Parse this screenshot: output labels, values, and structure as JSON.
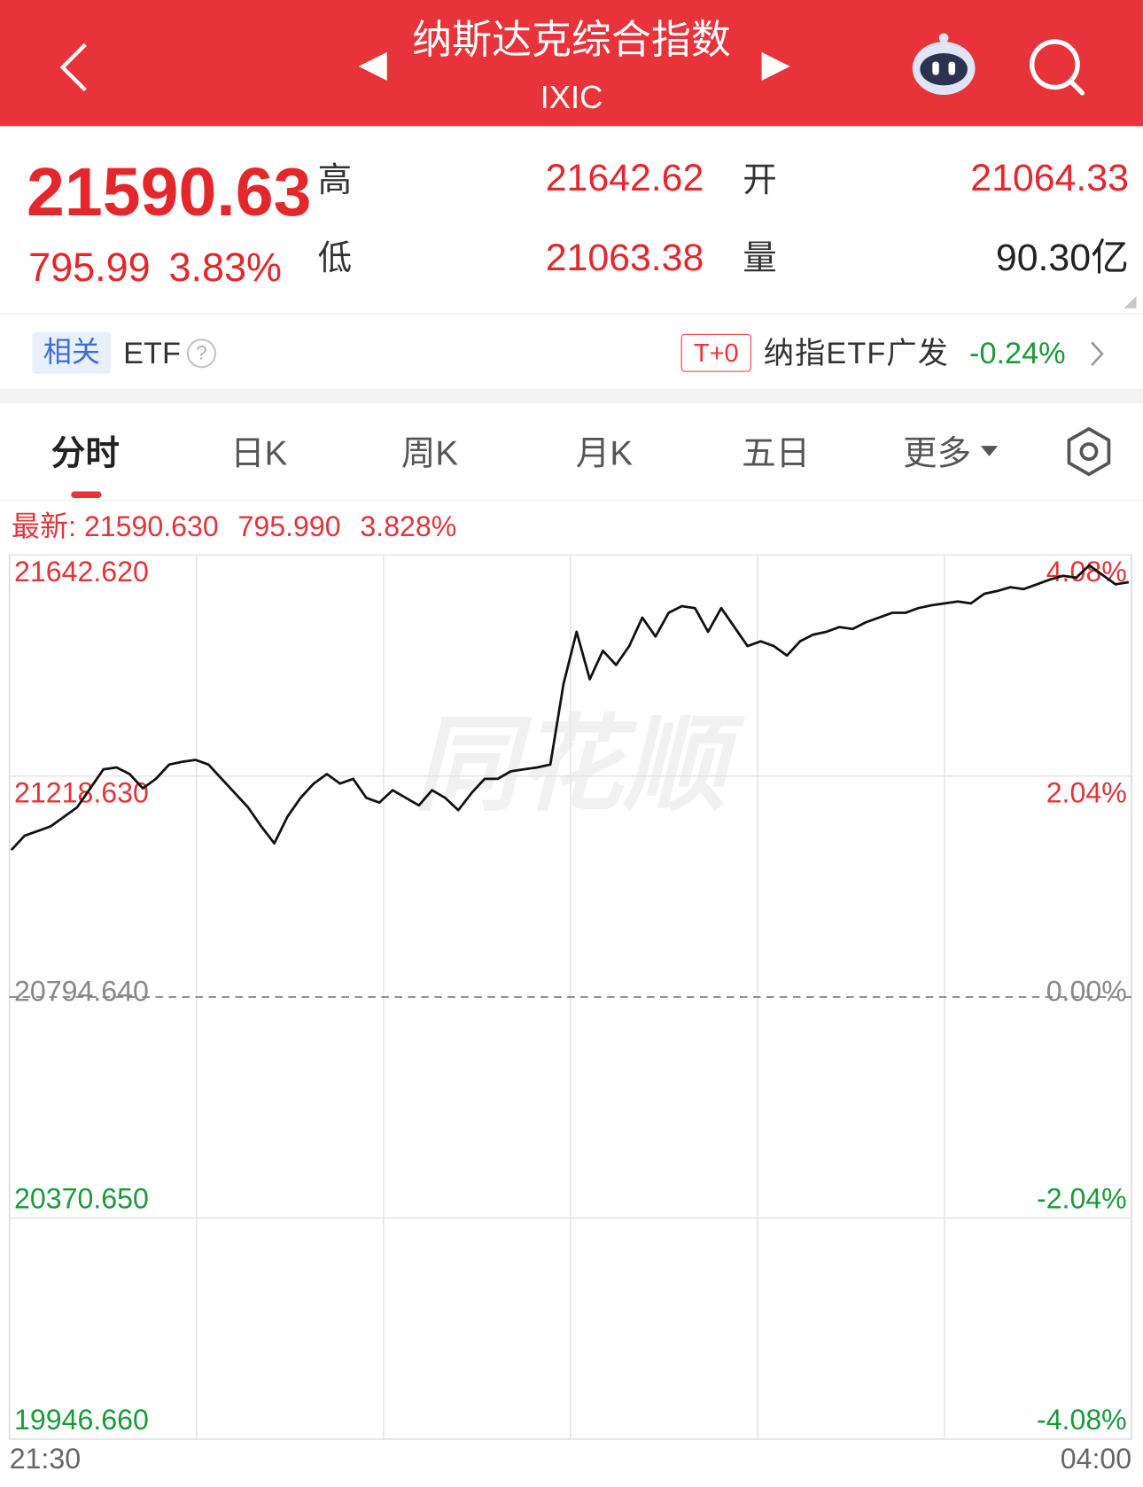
{
  "header": {
    "title": "纳斯达克综合指数",
    "subtitle": "IXIC"
  },
  "quote": {
    "price": "21590.63",
    "change": "795.99",
    "change_pct": "3.83%",
    "high_label": "高",
    "high": "21642.62",
    "low_label": "低",
    "low": "21063.38",
    "open_label": "开",
    "open": "21064.33",
    "volume_label": "量",
    "volume": "90.30亿"
  },
  "etf": {
    "tag": "相关",
    "label": "ETF",
    "help": "?",
    "badge": "T+0",
    "name": "纳指ETF广发",
    "change": "-0.24%"
  },
  "tabs": [
    "分时",
    "日K",
    "周K",
    "月K",
    "五日",
    "更多"
  ],
  "latest": {
    "label": "最新:",
    "price": "21590.630",
    "change": "795.990",
    "change_pct": "3.828%"
  },
  "watermark": "同花顺",
  "chart_data": {
    "type": "line",
    "color": "#111111",
    "up_color": "#e0353a",
    "down_color": "#1a9a3a",
    "flat_color": "#888888",
    "grid": true,
    "x_labels": [
      "21:30",
      "04:00"
    ],
    "ylim": [
      19946.66,
      21642.62
    ],
    "yticks": [
      {
        "value": 21642.62,
        "label": "21642.620"
      },
      {
        "value": 21218.63,
        "label": "21218.630"
      },
      {
        "value": 20794.64,
        "label": "20794.640"
      },
      {
        "value": 20370.65,
        "label": "20370.650"
      },
      {
        "value": 19946.66,
        "label": "19946.660"
      }
    ],
    "y2lim": [
      -4.08,
      4.08
    ],
    "y2ticks": [
      {
        "value": 4.08,
        "label": "4.08%"
      },
      {
        "value": 2.04,
        "label": "2.04%"
      },
      {
        "value": 0,
        "label": "0.00%"
      },
      {
        "value": -2.04,
        "label": "-2.04%"
      },
      {
        "value": -4.08,
        "label": "-4.08%"
      }
    ],
    "values": [
      21076.7,
      21104.0,
      21113.1,
      21122.2,
      21140.4,
      21158.6,
      21195.0,
      21231.4,
      21235.0,
      21222.3,
      21195.0,
      21213.2,
      21240.5,
      21245.9,
      21249.6,
      21240.5,
      21213.2,
      21185.9,
      21158.6,
      21122.2,
      21089.4,
      21140.4,
      21176.8,
      21204.1,
      21222.3,
      21204.1,
      21213.2,
      21176.8,
      21167.7,
      21191.3,
      21176.8,
      21162.2,
      21191.3,
      21176.8,
      21153.1,
      21185.9,
      21213.2,
      21213.2,
      21227.7,
      21231.4,
      21235.0,
      21240.5,
      21395.1,
      21495.2,
      21404.2,
      21458.8,
      21431.5,
      21467.9,
      21522.5,
      21486.1,
      21531.6,
      21544.3,
      21540.7,
      21495.2,
      21540.7,
      21504.3,
      21467.9,
      21477.0,
      21467.9,
      21449.7,
      21477.0,
      21489.7,
      21495.2,
      21504.3,
      21500.6,
      21513.4,
      21522.5,
      21531.6,
      21531.6,
      21540.7,
      21546.1,
      21549.8,
      21553.4,
      21549.8,
      21568.0,
      21573.4,
      21580.7,
      21577.1,
      21586.2,
      21595.3,
      21602.5,
      21598.9,
      21622.6,
      21604.4,
      21586.2,
      21590.6
    ]
  }
}
